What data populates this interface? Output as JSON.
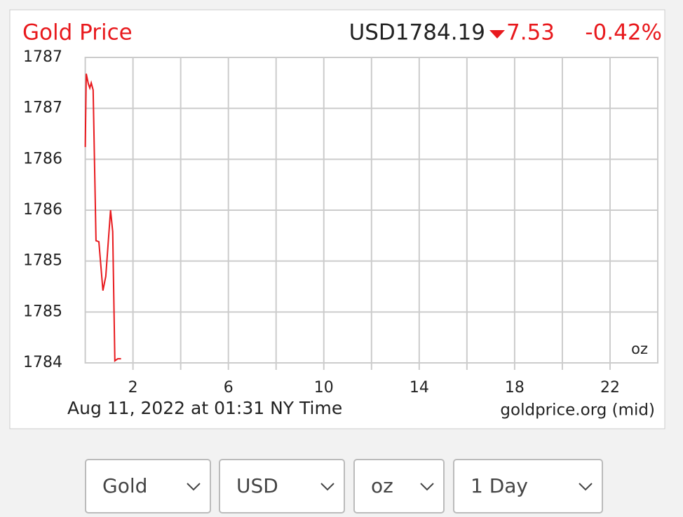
{
  "chart_data": {
    "type": "line",
    "title": "Gold Price",
    "price": "USD1784.19",
    "change": "7.53",
    "change_percent": "-0.42%",
    "unit_label": "oz",
    "timestamp": "Aug 11, 2022 at 01:31 NY Time",
    "source": "goldprice.org (mid)",
    "color": "#e8191d",
    "grid": true,
    "x": [
      0,
      0.04,
      0.13,
      0.19,
      0.25,
      0.33,
      0.45,
      0.57,
      0.74,
      0.86,
      1.06,
      1.15,
      1.24,
      1.36,
      1.5
    ],
    "values": [
      1786.12,
      1786.84,
      1786.74,
      1786.7,
      1786.75,
      1786.68,
      1785.2,
      1785.19,
      1784.71,
      1784.85,
      1785.5,
      1785.29,
      1784.02,
      1784.04,
      1784.04
    ],
    "xlim": [
      0,
      24
    ],
    "xticks": [
      2,
      6,
      10,
      14,
      18,
      22
    ],
    "x_minor_ticks": [
      4,
      8,
      12,
      16,
      20
    ],
    "ylim": [
      1784,
      1787
    ],
    "yticks": [
      1784,
      {
        "value": 1784.5,
        "label": "1785"
      },
      1785,
      {
        "value": 1785.5,
        "label": "1786"
      },
      1786,
      {
        "value": 1786.5,
        "label": "1787"
      },
      1787
    ]
  },
  "controls": [
    "Gold",
    "USD",
    "oz",
    "1 Day"
  ]
}
